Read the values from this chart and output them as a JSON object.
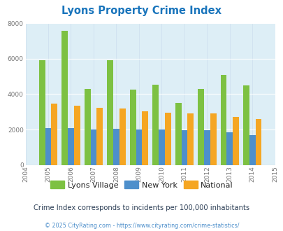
{
  "title": "Lyons Property Crime Index",
  "subtitle": "Crime Index corresponds to incidents per 100,000 inhabitants",
  "footer": "© 2025 CityRating.com - https://www.cityrating.com/crime-statistics/",
  "years": [
    2005,
    2006,
    2007,
    2008,
    2009,
    2010,
    2011,
    2012,
    2013,
    2014
  ],
  "lyons_village": [
    5900,
    7550,
    4300,
    5900,
    4250,
    4550,
    3500,
    4300,
    5100,
    4500
  ],
  "new_york": [
    2100,
    2100,
    2000,
    2050,
    2000,
    2000,
    1950,
    1950,
    1850,
    1700
  ],
  "national": [
    3450,
    3350,
    3250,
    3200,
    3050,
    2950,
    2900,
    2900,
    2700,
    2600
  ],
  "colors": {
    "lyons_village": "#7dc142",
    "new_york": "#4d8fcb",
    "national": "#f5a623"
  },
  "xlim": [
    2004,
    2015
  ],
  "ylim": [
    0,
    8000
  ],
  "yticks": [
    0,
    2000,
    4000,
    6000,
    8000
  ],
  "bg_color": "#ddeef6",
  "title_color": "#1a75bc",
  "subtitle_color": "#2e4057",
  "footer_color": "#4d8fcb",
  "bar_width": 0.27
}
